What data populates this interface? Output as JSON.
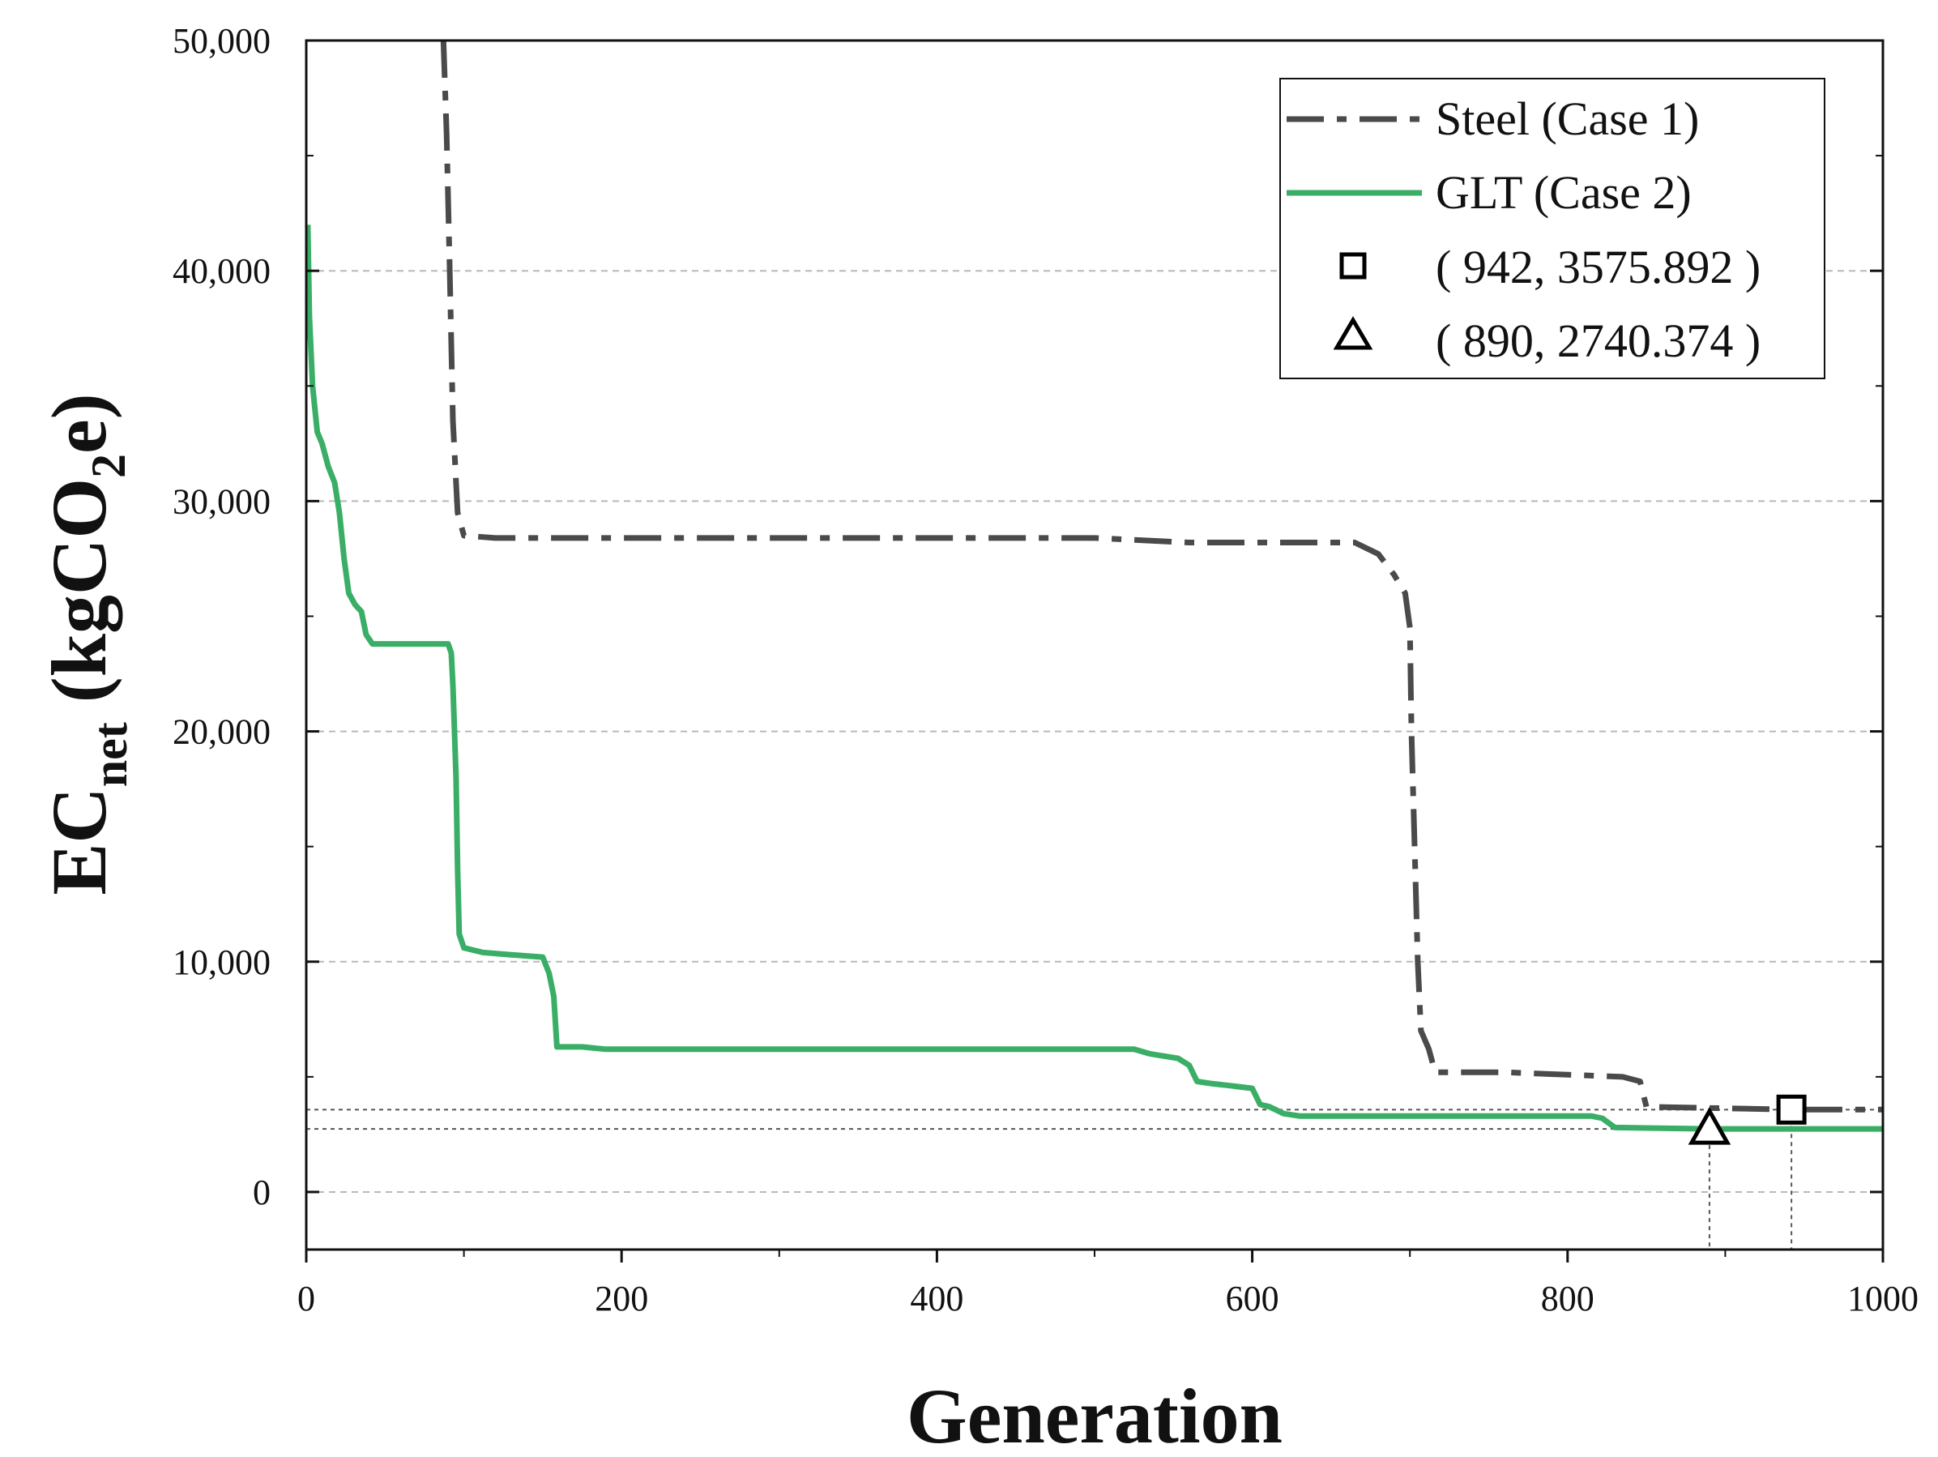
{
  "chart_data": {
    "type": "line",
    "title": "",
    "xlabel": "Generation",
    "ylabel": {
      "main": "EC",
      "sub": "net",
      "unit_open": " (kgCO",
      "unit_sub": "2",
      "unit_close": "e)"
    },
    "xlim": [
      0,
      1000
    ],
    "ylim": [
      -2500,
      50000
    ],
    "x_ticks": [
      0,
      200,
      400,
      600,
      800,
      1000
    ],
    "x_tick_labels": [
      "0",
      "200",
      "400",
      "600",
      "800",
      "1000"
    ],
    "y_ticks": [
      0,
      10000,
      20000,
      30000,
      40000,
      50000
    ],
    "y_tick_labels": [
      "0",
      "10,000",
      "20,000",
      "30,000",
      "40,000",
      "50,000"
    ],
    "grid": "horizontal dashed",
    "legend_position": "top-right",
    "series": [
      {
        "name": "Steel (Case 1)",
        "style": "dash-dot",
        "color": "#4a4a4a",
        "points": [
          [
            87,
            50000
          ],
          [
            89,
            46000
          ],
          [
            91,
            40000
          ],
          [
            93,
            33500
          ],
          [
            96,
            29500
          ],
          [
            100,
            28500
          ],
          [
            120,
            28400
          ],
          [
            300,
            28400
          ],
          [
            500,
            28400
          ],
          [
            560,
            28200
          ],
          [
            665,
            28200
          ],
          [
            680,
            27700
          ],
          [
            690,
            26800
          ],
          [
            697,
            26000
          ],
          [
            700,
            24500
          ],
          [
            701,
            20000
          ],
          [
            703,
            15000
          ],
          [
            705,
            10000
          ],
          [
            707,
            7000
          ],
          [
            712,
            6200
          ],
          [
            716,
            5200
          ],
          [
            760,
            5200
          ],
          [
            835,
            5000
          ],
          [
            846,
            4800
          ],
          [
            850,
            3700
          ],
          [
            942,
            3575.892
          ],
          [
            1000,
            3575.892
          ]
        ]
      },
      {
        "name": "GLT (Case 2)",
        "style": "solid",
        "color": "#3aae67",
        "points": [
          [
            1,
            42000
          ],
          [
            2,
            38000
          ],
          [
            4,
            35000
          ],
          [
            7,
            33000
          ],
          [
            10,
            32500
          ],
          [
            14,
            31500
          ],
          [
            18,
            30800
          ],
          [
            21,
            29500
          ],
          [
            24,
            27500
          ],
          [
            27,
            26000
          ],
          [
            31,
            25500
          ],
          [
            35,
            25200
          ],
          [
            38,
            24200
          ],
          [
            42,
            23800
          ],
          [
            90,
            23800
          ],
          [
            92,
            23400
          ],
          [
            93,
            22000
          ],
          [
            95,
            18000
          ],
          [
            96,
            14000
          ],
          [
            97,
            11200
          ],
          [
            100,
            10600
          ],
          [
            112,
            10400
          ],
          [
            130,
            10300
          ],
          [
            150,
            10200
          ],
          [
            154,
            9500
          ],
          [
            157,
            8500
          ],
          [
            159,
            6300
          ],
          [
            175,
            6300
          ],
          [
            190,
            6200
          ],
          [
            400,
            6200
          ],
          [
            525,
            6200
          ],
          [
            535,
            6000
          ],
          [
            553,
            5800
          ],
          [
            560,
            5500
          ],
          [
            565,
            4800
          ],
          [
            575,
            4700
          ],
          [
            588,
            4600
          ],
          [
            600,
            4500
          ],
          [
            605,
            3800
          ],
          [
            611,
            3700
          ],
          [
            620,
            3400
          ],
          [
            630,
            3300
          ],
          [
            700,
            3300
          ],
          [
            815,
            3300
          ],
          [
            822,
            3200
          ],
          [
            830,
            2800
          ],
          [
            890,
            2740.374
          ],
          [
            1000,
            2740.374
          ]
        ]
      }
    ],
    "markers": [
      {
        "shape": "square",
        "label": "( 942, 3575.892 )",
        "x": 942,
        "y": 3575.892
      },
      {
        "shape": "triangle",
        "label": "( 890, 2740.374 )",
        "x": 890,
        "y": 2740.374
      }
    ]
  }
}
